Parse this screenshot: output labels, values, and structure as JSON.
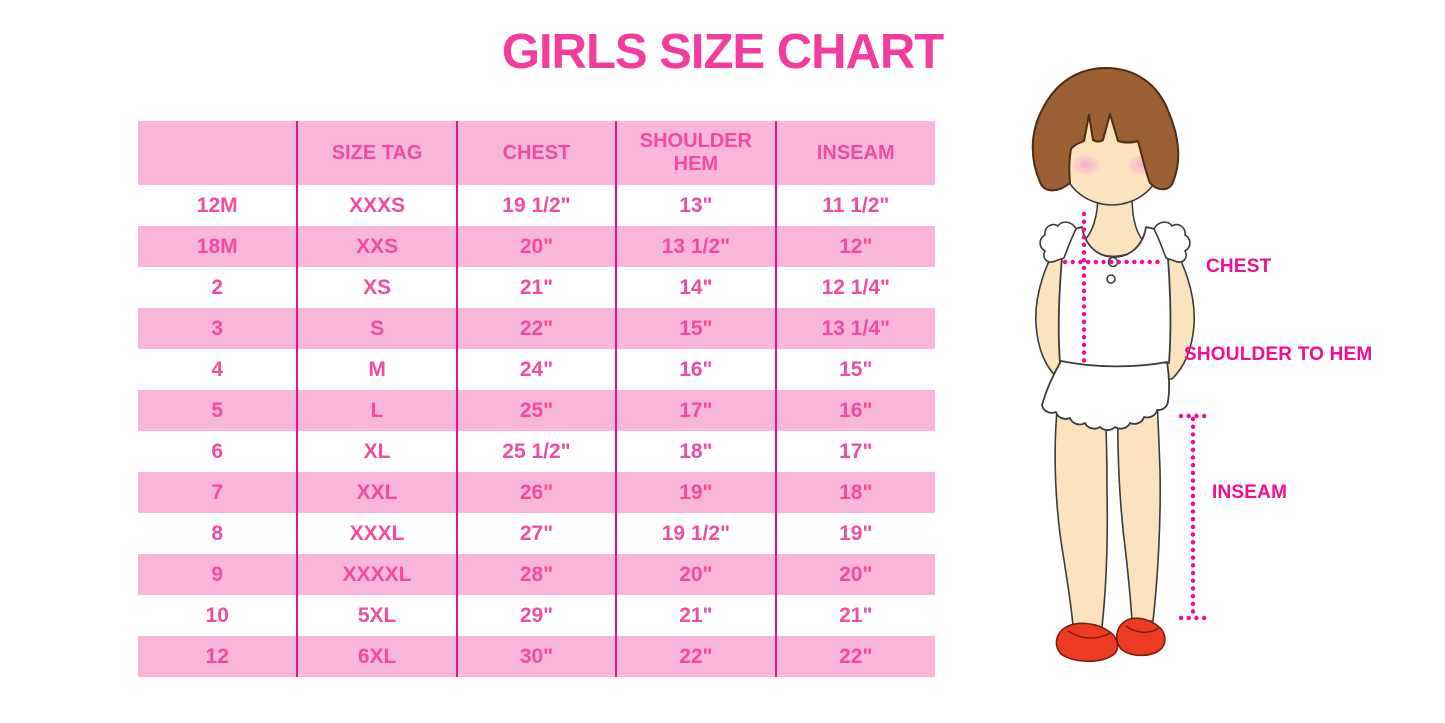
{
  "title": "GIRLS SIZE CHART",
  "chart_data": {
    "type": "table",
    "title": "GIRLS SIZE CHART",
    "columns": [
      "",
      "SIZE TAG",
      "CHEST",
      "SHOULDER HEM",
      "INSEAM"
    ],
    "rows": [
      [
        "12M",
        "XXXS",
        "19 1/2\"",
        "13\"",
        "11 1/2\""
      ],
      [
        "18M",
        "XXS",
        "20\"",
        "13 1/2\"",
        "12\""
      ],
      [
        "2",
        "XS",
        "21\"",
        "14\"",
        "12 1/4\""
      ],
      [
        "3",
        "S",
        "22\"",
        "15\"",
        "13 1/4\""
      ],
      [
        "4",
        "M",
        "24\"",
        "16\"",
        "15\""
      ],
      [
        "5",
        "L",
        "25\"",
        "17\"",
        "16\""
      ],
      [
        "6",
        "XL",
        "25 1/2\"",
        "18\"",
        "17\""
      ],
      [
        "7",
        "XXL",
        "26\"",
        "19\"",
        "18\""
      ],
      [
        "8",
        "XXXL",
        "27\"",
        "19 1/2\"",
        "19\""
      ],
      [
        "9",
        "XXXXL",
        "28\"",
        "20\"",
        "20\""
      ],
      [
        "10",
        "5XL",
        "29\"",
        "21\"",
        "21\""
      ],
      [
        "12",
        "6XL",
        "30\"",
        "22\"",
        "22\""
      ]
    ],
    "layout_hints": {
      "grid": "vertical magenta column dividers only, no horizontal rules",
      "pink_striped_row_indexes": [
        1,
        3,
        5,
        7,
        9,
        11
      ],
      "header_background": "pink"
    }
  },
  "figure": {
    "description": "cartoon girl with brown bob hair, white sleeveless ruffled top and red mary-jane shoes, with dotted measurement guides",
    "labels": {
      "chest": "CHEST",
      "shoulder_to_hem": "SHOULDER TO HEM",
      "inseam": "INSEAM"
    }
  },
  "colors": {
    "title_pink": "#F23D9D",
    "table_text_pink": "#F24BA1",
    "row_pink": "#FAB5DB",
    "divider_magenta": "#E81389",
    "measure_pink": "#F00D93",
    "hair_brown": "#9B6134",
    "hair_outline": "#4E2D13",
    "skin": "#FBE4BD",
    "blush_pink": "#F5BCCB",
    "shoe_red": "#EE3B24",
    "outline_dark": "#3B3B3B"
  }
}
